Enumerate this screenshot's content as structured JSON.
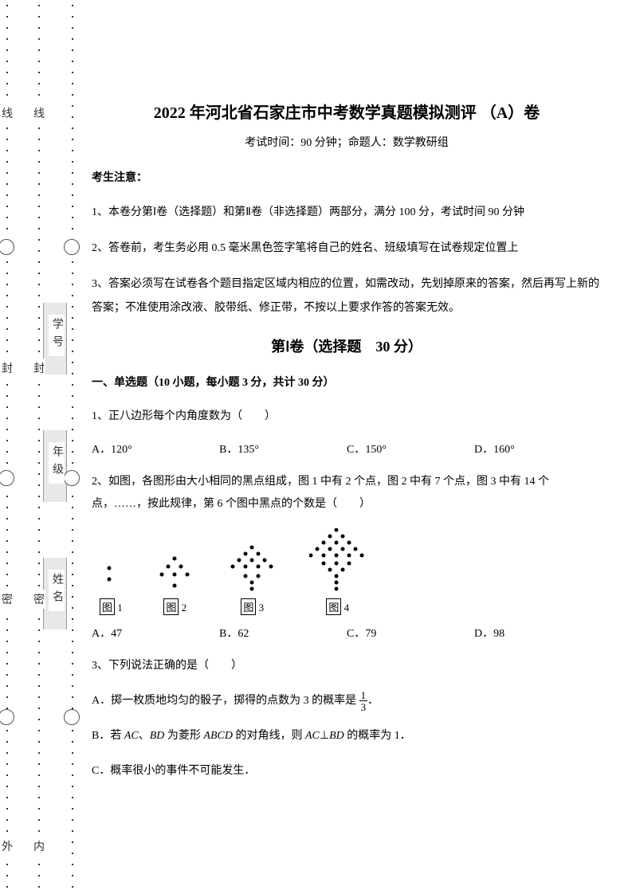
{
  "binding": {
    "outer_labels": [
      "外",
      "密",
      "封",
      "线"
    ],
    "inner_labels": [
      "内",
      "密",
      "封",
      "线"
    ],
    "gray_labels": [
      "姓名",
      "年级",
      "学号"
    ]
  },
  "header": {
    "title": "2022 年河北省石家庄市中考数学真题模拟测评 （A）卷",
    "subtitle": "考试时间：90 分钟；命题人：数学教研组"
  },
  "notice": {
    "header": "考生注意：",
    "items": [
      "1、本卷分第Ⅰ卷（选择题）和第Ⅱ卷（非选择题）两部分，满分 100 分，考试时间 90 分钟",
      "2、答卷前，考生务必用 0.5 毫米黑色签字笔将自己的姓名、班级填写在试卷规定位置上",
      "3、答案必须写在试卷各个题目指定区域内相应的位置，如需改动，先划掉原来的答案，然后再写上新的答案；不准使用涂改液、胶带纸、修正带，不按以上要求作答的答案无效。"
    ]
  },
  "section1": {
    "title": "第Ⅰ卷（选择题　30 分）",
    "subsection": "一、单选题（10 小题，每小题 3 分，共计 30 分）"
  },
  "q1": {
    "text": "1、正八边形每个内角度数为（　　）",
    "options": {
      "a": "A．120°",
      "b": "B．135°",
      "c": "C．150°",
      "d": "D．160°"
    }
  },
  "q2": {
    "text1": "2、如图，各图形由大小相同的黑点组成，图 1 中有 2 个点，图 2 中有 7 个点，图 3 中有 14 个点，……，按此规律，第 6 个图中黑点的个数是（　　）",
    "fig_labels": {
      "f1": "1",
      "f2": "2",
      "f3": "3",
      "f4": "4",
      "prefix": "图"
    },
    "figures": {
      "dot_color": "#000000",
      "dot_radius": 2.5,
      "fig1_points": [
        [
          10,
          18
        ],
        [
          10,
          32
        ]
      ],
      "fig2_points": [
        [
          25,
          8
        ],
        [
          17,
          18
        ],
        [
          33,
          18
        ],
        [
          9,
          28
        ],
        [
          25,
          28
        ],
        [
          41,
          28
        ],
        [
          25,
          42
        ]
      ],
      "fig3_points": [
        [
          30,
          4
        ],
        [
          22,
          12
        ],
        [
          38,
          12
        ],
        [
          14,
          20
        ],
        [
          30,
          20
        ],
        [
          46,
          20
        ],
        [
          6,
          28
        ],
        [
          22,
          28
        ],
        [
          38,
          28
        ],
        [
          54,
          28
        ],
        [
          22,
          40
        ],
        [
          38,
          40
        ],
        [
          30,
          48
        ],
        [
          30,
          56
        ]
      ],
      "fig4_points": [
        [
          34,
          2
        ],
        [
          26,
          10
        ],
        [
          42,
          10
        ],
        [
          18,
          18
        ],
        [
          34,
          18
        ],
        [
          50,
          18
        ],
        [
          10,
          26
        ],
        [
          26,
          26
        ],
        [
          42,
          26
        ],
        [
          58,
          26
        ],
        [
          2,
          34
        ],
        [
          18,
          34
        ],
        [
          34,
          34
        ],
        [
          50,
          34
        ],
        [
          66,
          34
        ],
        [
          18,
          44
        ],
        [
          34,
          44
        ],
        [
          50,
          44
        ],
        [
          26,
          52
        ],
        [
          42,
          52
        ],
        [
          34,
          60
        ],
        [
          34,
          68
        ],
        [
          34,
          76
        ]
      ]
    },
    "options": {
      "a": "A．47",
      "b": "B．62",
      "c": "C．79",
      "d": "D．98"
    }
  },
  "q3": {
    "text": "3、下列说法正确的是（　　）",
    "optA_pre": "A．掷一枚质地均匀的骰子，掷得的点数为 3 的概率是",
    "optA_post": "．",
    "fraction": {
      "num": "1",
      "den": "3"
    },
    "optB": "B．若 AC、BD 为菱形 ABCD 的对角线，则 AC⊥BD 的概率为 1．",
    "optC": "C．概率很小的事件不可能发生．"
  },
  "colors": {
    "text": "#000000",
    "gray_box": "#e8e8e8",
    "circle_border": "#555555",
    "dot": "#333333"
  }
}
